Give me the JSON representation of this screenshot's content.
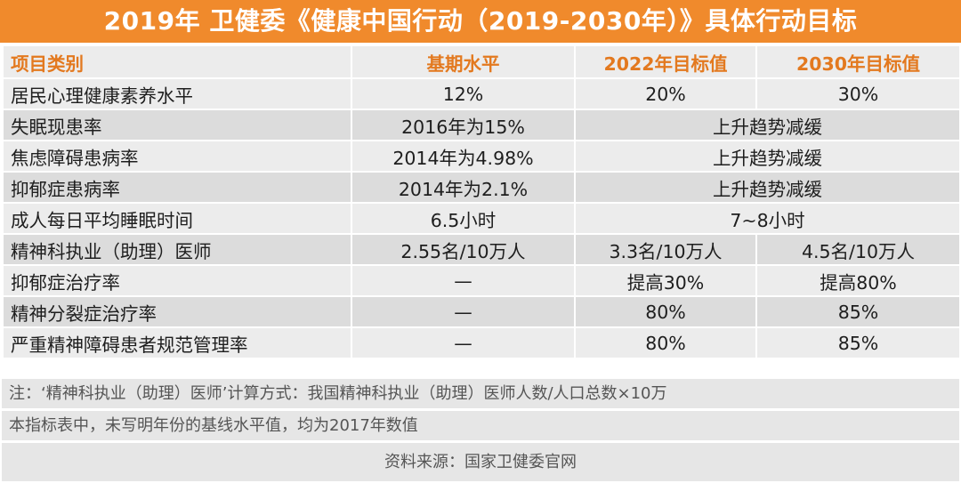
{
  "title": "2019年 卫健委《健康中国行动（2019-2030年）》具体行动目标",
  "header": [
    "项目类别",
    "基期水平",
    "2022年目标值",
    "2030年目标值"
  ],
  "rows": [
    [
      "居民心理健康素养水平",
      "12%",
      "20%",
      "30%"
    ],
    [
      "失眠现患率",
      "2016年为15%",
      "上升趋势减缓"
    ],
    [
      "焦虑障碍患病率",
      "2014年为4.98%",
      "上升趋势减缓"
    ],
    [
      "抑郁症患病率",
      "2014年为2.1%",
      "上升趋势减缓"
    ],
    [
      "成人每日平均睡眠时间",
      "6.5小时",
      "7~8小时"
    ],
    [
      "精神科执业（助理）医师",
      "2.55名/10万人",
      "3.3名/10万人",
      "4.5名/10万人"
    ],
    [
      "抑郁症治疗率",
      "—",
      "提高30%",
      "提高80%"
    ],
    [
      "精神分裂症治疗率",
      "—",
      "80%",
      "85%"
    ],
    [
      "严重精神障碍患者规范管理率",
      "—",
      "80%",
      "85%"
    ]
  ],
  "notes": [
    "注：‘精神科执业（助理）医师’计算方式：我国精神科执业（助理）医师人数/人口总数×10万",
    "本指标表中，未写明年份的基线水平值，均为2017年数值"
  ],
  "source": "资料来源：国家卫健委官网",
  "colors": {
    "accent": "#f08a2c",
    "header_text": "#e3791f"
  }
}
